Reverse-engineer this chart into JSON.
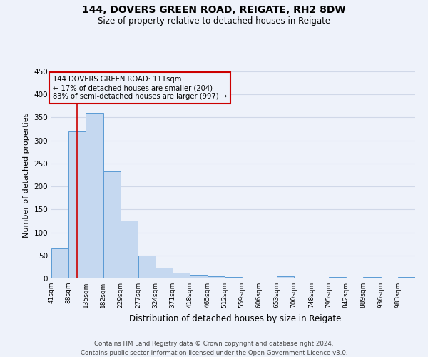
{
  "title1": "144, DOVERS GREEN ROAD, REIGATE, RH2 8DW",
  "title2": "Size of property relative to detached houses in Reigate",
  "xlabel": "Distribution of detached houses by size in Reigate",
  "ylabel": "Number of detached properties",
  "footer_line1": "Contains HM Land Registry data © Crown copyright and database right 2024.",
  "footer_line2": "Contains public sector information licensed under the Open Government Licence v3.0.",
  "bar_color": "#c5d8f0",
  "bar_edge_color": "#5b9bd5",
  "grid_color": "#d0d8e8",
  "annotation_box_color": "#cc0000",
  "property_line_color": "#cc0000",
  "property_size": 111,
  "annotation_text_line1": "144 DOVERS GREEN ROAD: 111sqm",
  "annotation_text_line2": "← 17% of detached houses are smaller (204)",
  "annotation_text_line3": "83% of semi-detached houses are larger (997) →",
  "bin_edges": [
    41,
    88,
    135,
    182,
    229,
    277,
    324,
    371,
    418,
    465,
    512,
    559,
    606,
    653,
    700,
    748,
    795,
    842,
    889,
    936,
    983
  ],
  "bar_heights": [
    65,
    320,
    360,
    232,
    125,
    50,
    23,
    13,
    8,
    5,
    3,
    2,
    0,
    4,
    0,
    0,
    3,
    0,
    3,
    0,
    3
  ],
  "tick_labels": [
    "41sqm",
    "88sqm",
    "135sqm",
    "182sqm",
    "229sqm",
    "277sqm",
    "324sqm",
    "371sqm",
    "418sqm",
    "465sqm",
    "512sqm",
    "559sqm",
    "606sqm",
    "653sqm",
    "700sqm",
    "748sqm",
    "795sqm",
    "842sqm",
    "889sqm",
    "936sqm",
    "983sqm"
  ],
  "ylim": [
    0,
    450
  ],
  "yticks": [
    0,
    50,
    100,
    150,
    200,
    250,
    300,
    350,
    400,
    450
  ],
  "background_color": "#eef2fa",
  "figsize": [
    6.0,
    5.0
  ],
  "dpi": 100
}
